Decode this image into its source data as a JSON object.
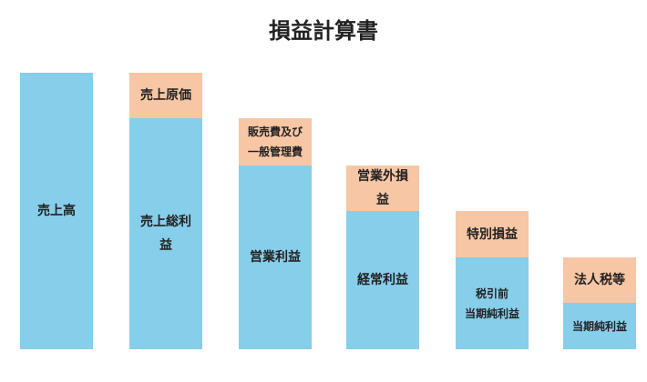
{
  "title": "損益計算書",
  "columns": [
    {
      "main": [
        "売上高"
      ]
    },
    {
      "deduction": [
        "売上原価"
      ],
      "main": [
        "売上総利",
        "益"
      ]
    },
    {
      "deduction": [
        "販売費及び",
        "一般管理費"
      ],
      "main": [
        "営業利益"
      ]
    },
    {
      "deduction": [
        "営業外損",
        "益"
      ],
      "main": [
        "経常利益"
      ]
    },
    {
      "deduction": [
        "特別損益"
      ],
      "main": [
        "税引前",
        "当期純利益"
      ]
    },
    {
      "deduction": [
        "法人税等"
      ],
      "main": [
        "当期純利益"
      ]
    }
  ]
}
